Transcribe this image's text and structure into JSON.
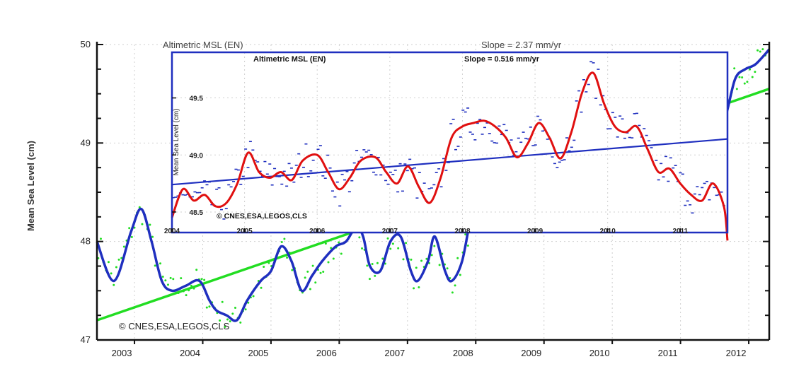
{
  "chart_data": [
    {
      "type": "line",
      "title": "Altimetric MSL (EN)",
      "slope_label": "Slope = 2.37 mm/yr",
      "ylabel": "Mean Sea Level (cm)",
      "xlabel": "",
      "xlim": [
        2002.45,
        2012.3
      ],
      "ylim": [
        47.0,
        50.0
      ],
      "x_ticks": [
        "2003",
        "2004",
        "2005",
        "2006",
        "2007",
        "2008",
        "2009",
        "2010",
        "2011",
        "2012"
      ],
      "y_ticks": [
        "47",
        "48",
        "49",
        "50"
      ],
      "grid": true,
      "annotation": "© CNES,ESA,LEGOS,CLS",
      "colors": {
        "smoothed": "#1f2fbf",
        "raw": "#22dd22",
        "trend": "#22dd22"
      },
      "series": [
        {
          "role": "smoothed",
          "x": [
            2002.45,
            2002.7,
            2002.95,
            2003.1,
            2003.25,
            2003.4,
            2003.55,
            2003.75,
            2003.95,
            2004.1,
            2004.2,
            2004.35,
            2004.5,
            2004.65,
            2004.85,
            2005.0,
            2005.15,
            2005.3,
            2005.45,
            2005.6,
            2005.75,
            2005.95,
            2006.1,
            2006.25,
            2006.35,
            2006.45,
            2006.6,
            2006.75,
            2006.9,
            2007.05,
            2007.15,
            2007.3,
            2007.4,
            2007.55,
            2007.65,
            2007.8,
            2007.95,
            2008.1,
            2008.3,
            2008.45,
            2008.55,
            2008.65,
            2008.8,
            2008.95,
            2009.1,
            2009.25,
            2009.35,
            2009.45,
            2009.55,
            2009.65,
            2009.8,
            2009.9,
            2010.0,
            2010.15,
            2010.3,
            2010.45,
            2010.6,
            2010.75,
            2010.9,
            2011.05,
            2011.2,
            2011.35,
            2011.5,
            2011.65,
            2011.8,
            2011.95,
            2012.1,
            2012.3
          ],
          "y": [
            48.0,
            47.6,
            48.1,
            48.33,
            48.0,
            47.6,
            47.5,
            47.55,
            47.6,
            47.4,
            47.3,
            47.25,
            47.2,
            47.4,
            47.6,
            47.7,
            47.95,
            47.8,
            47.5,
            47.65,
            47.8,
            47.95,
            48.0,
            48.15,
            48.05,
            47.75,
            47.7,
            48.0,
            48.05,
            47.7,
            47.6,
            47.8,
            48.05,
            47.7,
            47.6,
            47.8,
            48.3,
            48.4,
            48.5,
            48.55,
            48.4,
            48.3,
            48.6,
            48.95,
            49.05,
            49.1,
            48.9,
            48.55,
            48.4,
            48.6,
            49.1,
            49.45,
            49.52,
            49.45,
            49.55,
            49.6,
            49.45,
            49.35,
            49.5,
            49.4,
            49.15,
            49.2,
            49.15,
            49.25,
            49.65,
            49.75,
            49.8,
            49.95
          ]
        },
        {
          "role": "trend",
          "x": [
            2002.45,
            2012.3
          ],
          "y": [
            47.2,
            49.55
          ]
        }
      ]
    },
    {
      "type": "line",
      "title": "Altimetric MSL (EN)",
      "slope_label": "Slope = 0.516 mm/yr",
      "ylabel": "Mean Sea Level (cm)",
      "xlabel": "",
      "xlim": [
        2004.0,
        2011.65
      ],
      "ylim": [
        48.32,
        49.9
      ],
      "x_ticks": [
        "2004",
        "2005",
        "2006",
        "2007",
        "2008",
        "2009",
        "2010",
        "2011"
      ],
      "y_ticks": [
        "48.5",
        "49.0",
        "49.5"
      ],
      "grid": true,
      "annotation": "© CNES,ESA,LEGOS,CLS",
      "colors": {
        "smoothed": "#e01010",
        "raw": "#1f2fbf",
        "trend": "#1f2fbf"
      },
      "series": [
        {
          "role": "smoothed",
          "x": [
            2004.0,
            2004.15,
            2004.3,
            2004.45,
            2004.6,
            2004.75,
            2004.9,
            2005.05,
            2005.2,
            2005.35,
            2005.5,
            2005.65,
            2005.8,
            2006.0,
            2006.15,
            2006.3,
            2006.45,
            2006.6,
            2006.8,
            2006.95,
            2007.1,
            2007.25,
            2007.4,
            2007.55,
            2007.7,
            2007.85,
            2008.0,
            2008.15,
            2008.3,
            2008.45,
            2008.6,
            2008.75,
            2008.9,
            2009.05,
            2009.2,
            2009.35,
            2009.5,
            2009.65,
            2009.8,
            2009.95,
            2010.1,
            2010.25,
            2010.4,
            2010.55,
            2010.7,
            2010.85,
            2011.0,
            2011.15,
            2011.3,
            2011.45,
            2011.6,
            2011.65
          ],
          "y": [
            48.45,
            48.7,
            48.6,
            48.65,
            48.55,
            48.58,
            48.75,
            49.02,
            48.85,
            48.8,
            48.85,
            48.78,
            48.95,
            49.0,
            48.85,
            48.7,
            48.8,
            48.95,
            48.98,
            48.85,
            48.75,
            48.9,
            48.72,
            48.58,
            48.8,
            49.15,
            49.25,
            49.28,
            49.3,
            49.25,
            49.15,
            48.98,
            49.1,
            49.28,
            49.15,
            48.97,
            49.2,
            49.55,
            49.72,
            49.45,
            49.25,
            49.2,
            49.25,
            49.05,
            48.85,
            48.88,
            48.75,
            48.65,
            48.6,
            48.75,
            48.55,
            48.25
          ]
        },
        {
          "role": "trend",
          "x": [
            2004.0,
            2011.65
          ],
          "y": [
            48.74,
            49.14
          ]
        }
      ]
    }
  ]
}
